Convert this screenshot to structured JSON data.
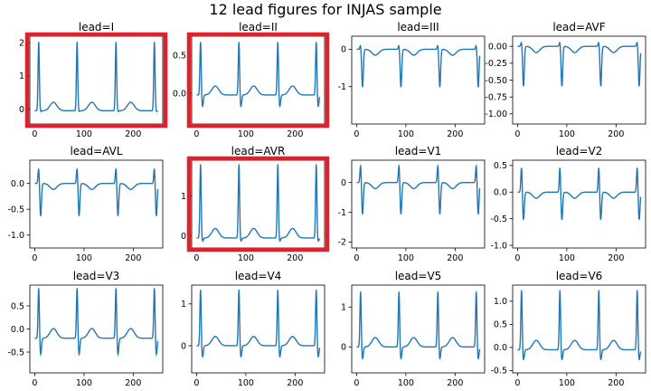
{
  "figure": {
    "title": "12 lead figures for INJAS sample"
  },
  "chart_data": [
    {
      "type": "line",
      "title": "lead=I",
      "x_ticks": [
        0,
        100,
        200
      ],
      "y_ticks": [
        0,
        1,
        2
      ],
      "ylim": [
        -0.45,
        2.2
      ],
      "xlim": [
        -10,
        260
      ],
      "highlighted": true,
      "beats": [
        8,
        86,
        165,
        243
      ],
      "peak": 2.03,
      "trough": -0.1,
      "baseline": -0.05,
      "series": [
        {
          "color": "#1f77b4"
        }
      ]
    },
    {
      "type": "line",
      "title": "lead=II",
      "x_ticks": [
        0,
        100,
        200
      ],
      "y_ticks": [
        0.0,
        0.5
      ],
      "ylim": [
        -0.4,
        0.75
      ],
      "xlim": [
        -10,
        260
      ],
      "highlighted": true,
      "beats": [
        8,
        86,
        165,
        243
      ],
      "peak": 0.68,
      "trough": -0.3,
      "baseline": -0.02,
      "series": [
        {
          "color": "#1f77b4"
        }
      ]
    },
    {
      "type": "line",
      "title": "lead=III",
      "x_ticks": [
        0,
        100,
        200
      ],
      "y_ticks": [
        -1,
        0
      ],
      "ylim": [
        -2.0,
        0.35
      ],
      "xlim": [
        -10,
        260
      ],
      "highlighted": false,
      "beats": [
        8,
        86,
        165,
        243
      ],
      "peak": 0.12,
      "trough": -1.85,
      "baseline": 0.0,
      "series": [
        {
          "color": "#1f77b4"
        }
      ]
    },
    {
      "type": "line",
      "title": "lead=AVF",
      "x_ticks": [
        0,
        100,
        200
      ],
      "y_ticks": [
        -1.0,
        -0.75,
        -0.5,
        -0.25,
        0.0
      ],
      "ylim": [
        -1.15,
        0.15
      ],
      "xlim": [
        -10,
        260
      ],
      "highlighted": false,
      "beats": [
        8,
        86,
        165,
        243
      ],
      "peak": 0.07,
      "trough": -1.08,
      "baseline": 0.0,
      "series": [
        {
          "color": "#1f77b4"
        }
      ]
    },
    {
      "type": "line",
      "title": "lead=AVL",
      "x_ticks": [
        0,
        100,
        200
      ],
      "y_ticks": [
        -1.0,
        -0.5,
        0.0
      ],
      "ylim": [
        -1.25,
        0.45
      ],
      "xlim": [
        -10,
        260
      ],
      "highlighted": false,
      "beats": [
        8,
        86,
        165,
        243
      ],
      "peak": 0.3,
      "trough": -1.15,
      "baseline": 0.0,
      "series": [
        {
          "color": "#1f77b4"
        }
      ]
    },
    {
      "type": "line",
      "title": "lead=AVR",
      "x_ticks": [
        0,
        100,
        200
      ],
      "y_ticks": [
        0,
        1
      ],
      "ylim": [
        -0.3,
        1.9
      ],
      "xlim": [
        -10,
        260
      ],
      "highlighted": true,
      "beats": [
        8,
        86,
        165,
        243
      ],
      "peak": 1.8,
      "trough": -0.2,
      "baseline": -0.05,
      "series": [
        {
          "color": "#1f77b4"
        }
      ]
    },
    {
      "type": "line",
      "title": "lead=V1",
      "x_ticks": [
        0,
        100,
        200
      ],
      "y_ticks": [
        -2,
        -1,
        0
      ],
      "ylim": [
        -2.2,
        0.75
      ],
      "xlim": [
        -10,
        260
      ],
      "highlighted": false,
      "beats": [
        8,
        86,
        165,
        243
      ],
      "peak": 0.6,
      "trough": -1.95,
      "baseline": 0.0,
      "series": [
        {
          "color": "#1f77b4"
        }
      ]
    },
    {
      "type": "line",
      "title": "lead=V2",
      "x_ticks": [
        0,
        100,
        200
      ],
      "y_ticks": [
        -1.0,
        -0.5,
        0.0,
        0.5
      ],
      "ylim": [
        -1.05,
        0.6
      ],
      "xlim": [
        -10,
        260
      ],
      "highlighted": false,
      "beats": [
        8,
        86,
        165,
        243
      ],
      "peak": 0.48,
      "trough": -0.95,
      "baseline": 0.0,
      "series": [
        {
          "color": "#1f77b4"
        }
      ]
    },
    {
      "type": "line",
      "title": "lead=V3",
      "x_ticks": [
        0,
        100,
        200
      ],
      "y_ticks": [
        -0.5,
        0.0,
        0.5
      ],
      "ylim": [
        -0.95,
        0.95
      ],
      "xlim": [
        -10,
        260
      ],
      "highlighted": false,
      "beats": [
        8,
        86,
        165,
        243
      ],
      "peak": 0.9,
      "trough": -0.85,
      "baseline": -0.2,
      "series": [
        {
          "color": "#1f77b4"
        }
      ]
    },
    {
      "type": "line",
      "title": "lead=V4",
      "x_ticks": [
        0,
        100,
        200
      ],
      "y_ticks": [
        0,
        1
      ],
      "ylim": [
        -0.65,
        1.45
      ],
      "xlim": [
        -10,
        260
      ],
      "highlighted": false,
      "beats": [
        8,
        86,
        165,
        243
      ],
      "peak": 1.35,
      "trough": -0.5,
      "baseline": 0.0,
      "series": [
        {
          "color": "#1f77b4"
        }
      ]
    },
    {
      "type": "line",
      "title": "lead=V5",
      "x_ticks": [
        0,
        100,
        200
      ],
      "y_ticks": [
        0,
        1
      ],
      "ylim": [
        -0.65,
        1.55
      ],
      "xlim": [
        -10,
        260
      ],
      "highlighted": false,
      "beats": [
        8,
        86,
        165,
        243
      ],
      "peak": 1.4,
      "trough": -0.55,
      "baseline": 0.0,
      "series": [
        {
          "color": "#1f77b4"
        }
      ]
    },
    {
      "type": "line",
      "title": "lead=V6",
      "x_ticks": [
        0,
        100,
        200
      ],
      "y_ticks": [
        -0.5,
        0.0,
        0.5,
        1.0
      ],
      "ylim": [
        -0.55,
        1.35
      ],
      "xlim": [
        -10,
        260
      ],
      "highlighted": false,
      "beats": [
        8,
        86,
        165,
        243
      ],
      "peak": 1.25,
      "trough": -0.45,
      "baseline": -0.05,
      "series": [
        {
          "color": "#1f77b4"
        }
      ]
    }
  ]
}
